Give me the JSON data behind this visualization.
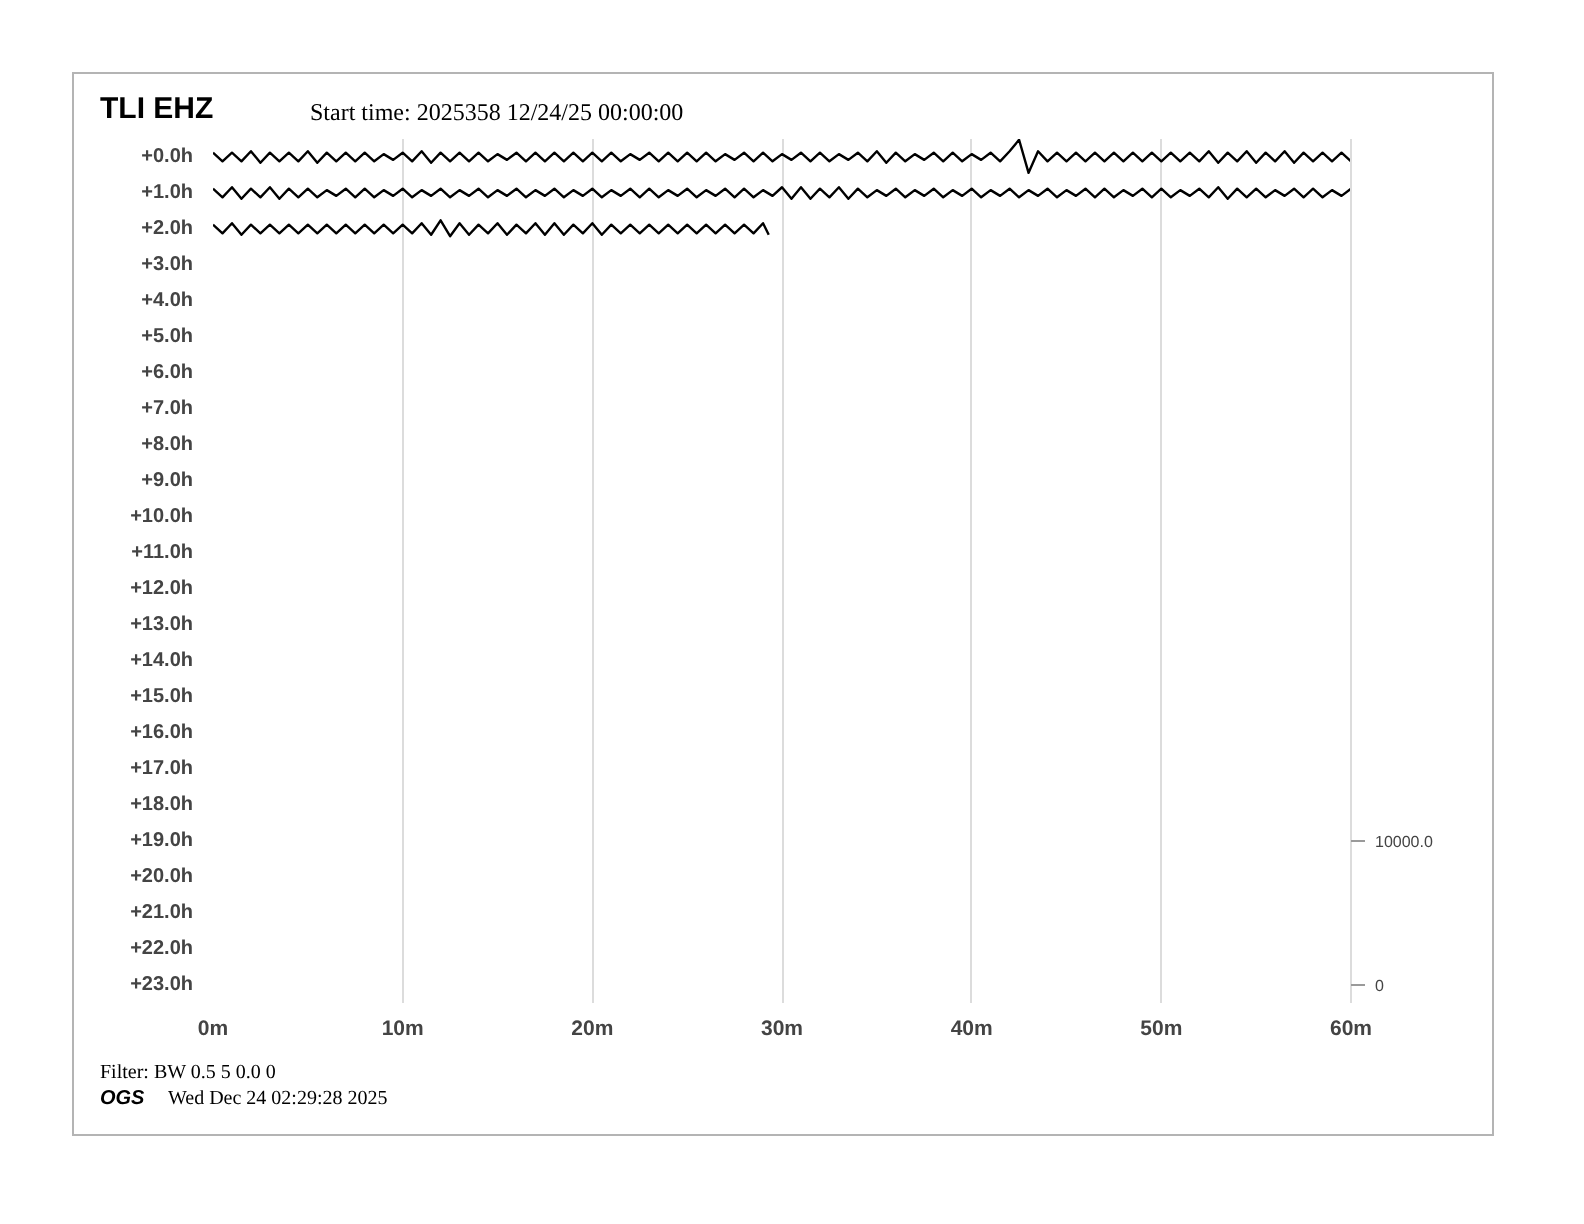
{
  "chart_data": {
    "type": "line",
    "title": "TLI EHZ",
    "subtitle": "Start time: 2025358 12/24/25 00:00:00",
    "annotations": [
      "Filter: BW 0.5 5 0.0 0",
      "OGS",
      "Wed Dec 24 02:29:28 2025"
    ],
    "x": [
      0,
      0.5,
      1,
      1.5,
      2,
      2.5,
      3,
      3.5,
      4,
      4.5,
      5,
      5.5,
      6,
      6.5,
      7,
      7.5,
      8,
      8.5,
      9,
      9.5,
      10,
      10.5,
      11,
      11.5,
      12,
      12.5,
      13,
      13.5,
      14,
      14.5,
      15,
      15.5,
      16,
      16.5,
      17,
      17.5,
      18,
      18.5,
      19,
      19.5,
      20,
      20.5,
      21,
      21.5,
      22,
      22.5,
      23,
      23.5,
      24,
      24.5,
      25,
      25.5,
      26,
      26.5,
      27,
      27.5,
      28,
      28.5,
      29,
      29.5,
      30,
      30.5,
      31,
      31.5,
      32,
      32.5,
      33,
      33.5,
      34,
      34.5,
      35,
      35.5,
      36,
      36.5,
      37,
      37.5,
      38,
      38.5,
      39,
      39.5,
      40,
      40.5,
      41,
      41.5,
      42,
      42.5,
      43,
      43.5,
      44,
      44.5,
      45,
      45.5,
      46,
      46.5,
      47,
      47.5,
      48,
      48.5,
      49,
      49.5,
      50,
      50.5,
      51,
      51.5,
      52,
      52.5,
      53,
      53.5,
      54,
      54.5,
      55,
      55.5,
      56,
      56.5,
      57,
      57.5,
      58,
      58.5,
      59,
      59.5,
      60
    ],
    "xlim": [
      0,
      60
    ],
    "xticks": [
      {
        "value": 0,
        "label": "0m"
      },
      {
        "value": 10,
        "label": "10m"
      },
      {
        "value": 20,
        "label": "20m"
      },
      {
        "value": 30,
        "label": "30m"
      },
      {
        "value": 40,
        "label": "40m"
      },
      {
        "value": 50,
        "label": "50m"
      },
      {
        "value": 60,
        "label": "60m"
      }
    ],
    "ylim": [
      23.5,
      -0.5
    ],
    "yticks": [
      {
        "value": 0,
        "label": "+0.0h"
      },
      {
        "value": 1,
        "label": "+1.0h"
      },
      {
        "value": 2,
        "label": "+2.0h"
      },
      {
        "value": 3,
        "label": "+3.0h"
      },
      {
        "value": 4,
        "label": "+4.0h"
      },
      {
        "value": 5,
        "label": "+5.0h"
      },
      {
        "value": 6,
        "label": "+6.0h"
      },
      {
        "value": 7,
        "label": "+7.0h"
      },
      {
        "value": 8,
        "label": "+8.0h"
      },
      {
        "value": 9,
        "label": "+9.0h"
      },
      {
        "value": 10,
        "label": "+10.0h"
      },
      {
        "value": 11,
        "label": "+11.0h"
      },
      {
        "value": 12,
        "label": "+12.0h"
      },
      {
        "value": 13,
        "label": "+13.0h"
      },
      {
        "value": 14,
        "label": "+14.0h"
      },
      {
        "value": 15,
        "label": "+15.0h"
      },
      {
        "value": 16,
        "label": "+16.0h"
      },
      {
        "value": 17,
        "label": "+17.0h"
      },
      {
        "value": 18,
        "label": "+18.0h"
      },
      {
        "value": 19,
        "label": "+19.0h"
      },
      {
        "value": 20,
        "label": "+20.0h"
      },
      {
        "value": 21,
        "label": "+21.0h"
      },
      {
        "value": 22,
        "label": "+22.0h"
      },
      {
        "value": 23,
        "label": "+23.0h"
      }
    ],
    "y2lim": [
      -1250,
      58750
    ],
    "y2ticks": [
      0,
      {
        "value": 10000,
        "label": "10000.0"
      }
    ],
    "grid": "x",
    "series": [
      {
        "color": "#000000",
        "axis": "y2",
        "values": [
          57800,
          57200,
          57800,
          57200,
          57900,
          57100,
          57800,
          57200,
          57800,
          57200,
          57900,
          57100,
          57800,
          57200,
          57800,
          57200,
          57800,
          57200,
          57700,
          57300,
          57800,
          57200,
          57900,
          57100,
          57800,
          57200,
          57800,
          57200,
          57800,
          57200,
          57700,
          57300,
          57800,
          57200,
          57800,
          57200,
          57800,
          57200,
          57800,
          57200,
          57800,
          57200,
          57800,
          57200,
          57700,
          57300,
          57800,
          57200,
          57800,
          57200,
          57800,
          57200,
          57800,
          57200,
          57700,
          57300,
          57800,
          57200,
          57800,
          57200,
          57700,
          57300,
          57800,
          57200,
          57800,
          57200,
          57700,
          57300,
          57800,
          57200,
          57900,
          57100,
          57800,
          57200,
          57700,
          57300,
          57800,
          57200,
          57800,
          57200,
          57700,
          57300,
          57800,
          57200,
          57900,
          58700,
          56400,
          57900,
          57200,
          57800,
          57200,
          57800,
          57200,
          57800,
          57200,
          57800,
          57200,
          57800,
          57200,
          57800,
          57200,
          57800,
          57200,
          57800,
          57200,
          57900,
          57100,
          57800,
          57200,
          57900,
          57100,
          57800,
          57200,
          57900,
          57100,
          57800,
          57200,
          57800,
          57200,
          57800,
          57200
        ]
      },
      {
        "color": "#000000",
        "axis": "y2",
        "values": [
          55300,
          54700,
          55400,
          54600,
          55300,
          54700,
          55400,
          54600,
          55300,
          54700,
          55300,
          54700,
          55200,
          54800,
          55300,
          54700,
          55300,
          54700,
          55200,
          54800,
          55300,
          54700,
          55200,
          54800,
          55300,
          54700,
          55200,
          54800,
          55300,
          54700,
          55200,
          54800,
          55300,
          54700,
          55200,
          54800,
          55300,
          54700,
          55200,
          54800,
          55300,
          54700,
          55200,
          54800,
          55300,
          54700,
          55300,
          54700,
          55200,
          54800,
          55300,
          54700,
          55200,
          54800,
          55300,
          54700,
          55300,
          54700,
          55200,
          54800,
          55400,
          54600,
          55400,
          54600,
          55300,
          54700,
          55400,
          54600,
          55300,
          54700,
          55200,
          54800,
          55300,
          54700,
          55200,
          54800,
          55300,
          54700,
          55200,
          54800,
          55300,
          54700,
          55200,
          54800,
          55300,
          54700,
          55200,
          54800,
          55300,
          54700,
          55200,
          54800,
          55300,
          54700,
          55300,
          54700,
          55200,
          54800,
          55300,
          54700,
          55300,
          54700,
          55200,
          54800,
          55300,
          54700,
          55400,
          54600,
          55300,
          54700,
          55300,
          54700,
          55200,
          54800,
          55300,
          54700,
          55300,
          54700,
          55200,
          54800,
          55300
        ]
      },
      {
        "color": "#000000",
        "axis": "y2",
        "x": [
          0,
          0.5,
          1,
          1.5,
          2,
          2.5,
          3,
          3.5,
          4,
          4.5,
          5,
          5.5,
          6,
          6.5,
          7,
          7.5,
          8,
          8.5,
          9,
          9.5,
          10,
          10.5,
          11,
          11.5,
          12,
          12.5,
          13,
          13.5,
          14,
          14.5,
          15,
          15.5,
          16,
          16.5,
          17,
          17.5,
          18,
          18.5,
          19,
          19.5,
          20,
          20.5,
          21,
          21.5,
          22,
          22.5,
          23,
          23.5,
          24,
          24.5,
          25,
          25.5,
          26,
          26.5,
          27,
          27.5,
          28,
          28.5,
          29,
          29.3
        ],
        "values": [
          52800,
          52200,
          52900,
          52100,
          52800,
          52200,
          52800,
          52200,
          52800,
          52200,
          52800,
          52200,
          52800,
          52200,
          52800,
          52200,
          52800,
          52200,
          52800,
          52200,
          52800,
          52200,
          52900,
          52100,
          53100,
          52000,
          52900,
          52100,
          52800,
          52200,
          52900,
          52100,
          52800,
          52200,
          52900,
          52100,
          52900,
          52100,
          52800,
          52200,
          52900,
          52100,
          52800,
          52200,
          52800,
          52200,
          52800,
          52200,
          52800,
          52200,
          52800,
          52200,
          52800,
          52200,
          52800,
          52200,
          52800,
          52200,
          52900,
          52100
        ]
      }
    ]
  }
}
